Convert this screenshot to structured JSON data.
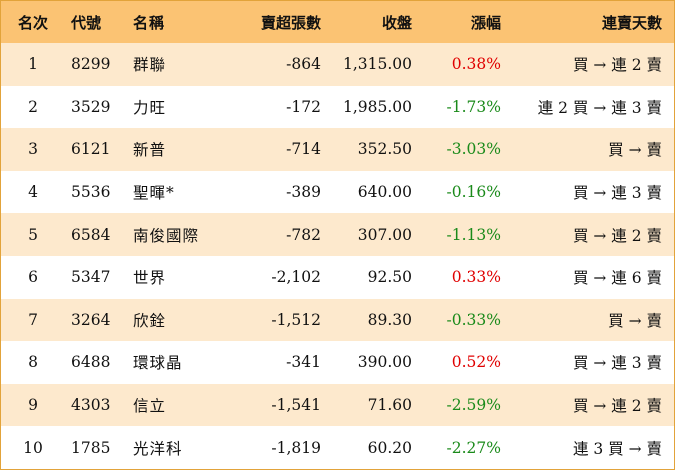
{
  "headers": {
    "rank": "名次",
    "code": "代號",
    "name": "名稱",
    "net_sell": "賣超張數",
    "close": "收盤",
    "change": "漲幅",
    "streak": "連賣天數"
  },
  "colors": {
    "up": "#e00000",
    "down": "#1a8a1a",
    "header_bg": "#fbc373",
    "stripe": "#fde9cd"
  },
  "rows": [
    {
      "rank": "1",
      "code": "8299",
      "name": "群聯",
      "net_sell": "-864",
      "close": "1,315.00",
      "change": "0.38%",
      "dir": "up",
      "streak": "買 → 連 2 賣"
    },
    {
      "rank": "2",
      "code": "3529",
      "name": "力旺",
      "net_sell": "-172",
      "close": "1,985.00",
      "change": "-1.73%",
      "dir": "down",
      "streak": "連 2 買 → 連 3 賣"
    },
    {
      "rank": "3",
      "code": "6121",
      "name": "新普",
      "net_sell": "-714",
      "close": "352.50",
      "change": "-3.03%",
      "dir": "down",
      "streak": "買 → 賣"
    },
    {
      "rank": "4",
      "code": "5536",
      "name": "聖暉*",
      "net_sell": "-389",
      "close": "640.00",
      "change": "-0.16%",
      "dir": "down",
      "streak": "買 → 連 3 賣"
    },
    {
      "rank": "5",
      "code": "6584",
      "name": "南俊國際",
      "net_sell": "-782",
      "close": "307.00",
      "change": "-1.13%",
      "dir": "down",
      "streak": "買 → 連 2 賣"
    },
    {
      "rank": "6",
      "code": "5347",
      "name": "世界",
      "net_sell": "-2,102",
      "close": "92.50",
      "change": "0.33%",
      "dir": "up",
      "streak": "買 → 連 6 賣"
    },
    {
      "rank": "7",
      "code": "3264",
      "name": "欣銓",
      "net_sell": "-1,512",
      "close": "89.30",
      "change": "-0.33%",
      "dir": "down",
      "streak": "買 → 賣"
    },
    {
      "rank": "8",
      "code": "6488",
      "name": "環球晶",
      "net_sell": "-341",
      "close": "390.00",
      "change": "0.52%",
      "dir": "up",
      "streak": "買 → 連 3 賣"
    },
    {
      "rank": "9",
      "code": "4303",
      "name": "信立",
      "net_sell": "-1,541",
      "close": "71.60",
      "change": "-2.59%",
      "dir": "down",
      "streak": "買 → 連 2 賣"
    },
    {
      "rank": "10",
      "code": "1785",
      "name": "光洋科",
      "net_sell": "-1,819",
      "close": "60.20",
      "change": "-2.27%",
      "dir": "down",
      "streak": "連 3 買 → 賣"
    }
  ]
}
